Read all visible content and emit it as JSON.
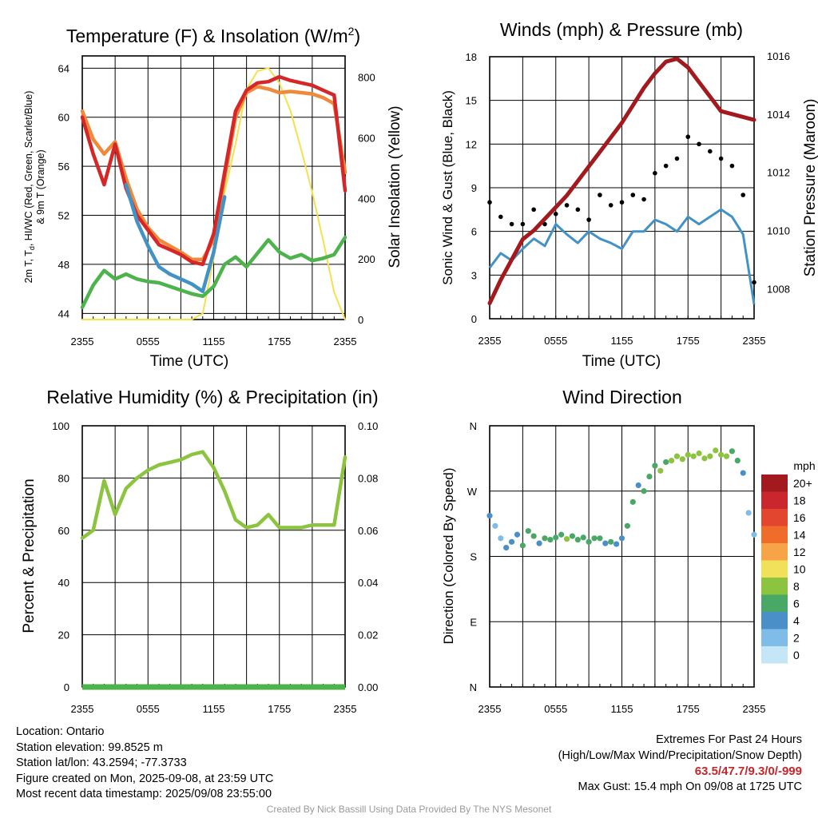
{
  "chart_data": [
    {
      "type": "line",
      "title": "Temperature (F) & Insolation (W/m²)",
      "xlabel": "Time (UTC)",
      "ylabel": "2m T, Td, HI/WC (Red, Green, Scarlet/Blue) & 9m T (Orange)",
      "ylabel_line1": "2m T, T",
      "ylabel_sub": "d",
      "ylabel_line1b": ", HI/WC (Red, Green, Scarlet/Blue)",
      "ylabel_line2": "& 9m T (Orange)",
      "y2label": "Solar Insolation (Yellow)",
      "title_main": "Temperature (F) & Insolation (W/m",
      "title_sup": "2",
      "title_end": ")",
      "x_ticks": [
        "2355",
        "0555",
        "1155",
        "1755",
        "2355"
      ],
      "ylim": [
        43.5,
        65
      ],
      "y_ticks": [
        44,
        48,
        52,
        56,
        60,
        64
      ],
      "y2lim": [
        0,
        870
      ],
      "y2_ticks": [
        0,
        200,
        400,
        600,
        800
      ],
      "x": [
        0,
        1,
        2,
        3,
        4,
        5,
        6,
        7,
        8,
        9,
        10,
        11,
        12,
        13,
        14,
        15,
        16,
        17,
        18,
        19,
        20,
        21,
        22,
        23,
        24
      ],
      "series": [
        {
          "color": "#f08a3a",
          "values": [
            60.5,
            58.2,
            57.0,
            58.0,
            55.0,
            52.5,
            51.0,
            50.0,
            49.5,
            49.0,
            48.4,
            48.4,
            50.0,
            55.0,
            60.0,
            62.0,
            62.5,
            62.3,
            62.0,
            62.1,
            62.0,
            61.9,
            61.6,
            61.1,
            55.5
          ]
        },
        {
          "color": "#d62728",
          "values": [
            60.0,
            57.0,
            54.5,
            57.8,
            54.2,
            52.0,
            50.8,
            49.6,
            49.2,
            48.8,
            48.2,
            48.0,
            50.5,
            55.5,
            60.5,
            62.2,
            62.8,
            62.9,
            63.3,
            63.0,
            62.8,
            62.6,
            62.2,
            61.8,
            54.0
          ]
        },
        {
          "color": "#4292c6",
          "values": [
            null,
            null,
            null,
            null,
            54.5,
            51.5,
            49.5,
            47.8,
            47.2,
            46.8,
            46.4,
            45.8,
            49.0,
            53.5,
            null,
            null,
            null,
            null,
            null,
            null,
            null,
            null,
            null,
            null,
            null
          ]
        },
        {
          "color": "#4db34d",
          "values": [
            44.5,
            46.3,
            47.5,
            46.8,
            47.2,
            46.8,
            46.6,
            46.5,
            46.2,
            45.9,
            45.6,
            45.4,
            46.2,
            48.0,
            48.6,
            47.8,
            48.9,
            50.0,
            49.0,
            48.5,
            48.8,
            48.3,
            48.5,
            48.8,
            50.2
          ]
        },
        {
          "color": "#f6e04d",
          "values": [
            0,
            0,
            0,
            0,
            0,
            0,
            0,
            0,
            0,
            0,
            0,
            20,
            200,
            420,
            580,
            760,
            820,
            830,
            780,
            690,
            560,
            420,
            260,
            90,
            0
          ]
        }
      ]
    },
    {
      "type": "scatter",
      "title": "Winds (mph) & Pressure (mb)",
      "xlabel": "Time (UTC)",
      "ylabel": "Sonic Wind & Gust (Blue, Black)",
      "y2label": "Station Pressure (Maroon)",
      "x_ticks": [
        "2355",
        "0555",
        "1155",
        "1755",
        "2355"
      ],
      "ylim": [
        0,
        18
      ],
      "y_ticks": [
        0,
        3,
        6,
        9,
        12,
        15,
        18
      ],
      "y2lim": [
        1006.97,
        1015.97
      ],
      "y2_ticks": [
        1008,
        1010,
        1012,
        1014,
        1016
      ],
      "x": [
        0,
        1,
        2,
        3,
        4,
        5,
        6,
        7,
        8,
        9,
        10,
        11,
        12,
        13,
        14,
        15,
        16,
        17,
        18,
        19,
        20,
        21,
        22,
        23,
        24
      ],
      "series": [
        {
          "color": "#4292c6",
          "values": [
            3.5,
            4.5,
            4.0,
            4.8,
            5.5,
            5.0,
            6.5,
            5.8,
            5.2,
            6.0,
            5.5,
            5.2,
            4.8,
            6.0,
            6.0,
            6.8,
            6.5,
            6.0,
            7.0,
            6.5,
            7.0,
            7.5,
            7.0,
            5.8,
            1.0
          ]
        },
        {
          "color": "#000000",
          "values": [
            8.0,
            7.0,
            6.5,
            6.5,
            7.5,
            6.5,
            7.2,
            7.8,
            7.5,
            6.8,
            8.5,
            7.8,
            8.0,
            8.5,
            8.2,
            10.0,
            10.5,
            11.0,
            12.5,
            12.0,
            11.5,
            11.0,
            10.5,
            8.5,
            2.5
          ]
        },
        {
          "color": "#a31a1e",
          "values": [
            1007.5,
            1008.3,
            1009.0,
            1009.7,
            1010.0,
            1010.4,
            1010.8,
            1011.2,
            1011.7,
            1012.2,
            1012.7,
            1013.2,
            1013.7,
            1014.3,
            1014.9,
            1015.4,
            1015.8,
            1015.9,
            1015.6,
            1015.1,
            1014.6,
            1014.1,
            1014.0,
            1013.9,
            1013.8
          ]
        }
      ]
    },
    {
      "type": "line",
      "title": "Relative Humidity (%) & Precipitation (in)",
      "ylabel": "Percent & Precipitation",
      "x_ticks": [
        "2355",
        "0555",
        "1155",
        "1755",
        "2355"
      ],
      "ylim": [
        0,
        100
      ],
      "y_ticks": [
        0,
        20,
        40,
        60,
        80,
        100
      ],
      "y2lim": [
        0,
        0.1
      ],
      "y2_ticks": [
        "0.00",
        "0.02",
        "0.04",
        "0.06",
        "0.08",
        "0.10"
      ],
      "x": [
        0,
        1,
        2,
        3,
        4,
        5,
        6,
        7,
        8,
        9,
        10,
        11,
        12,
        13,
        14,
        15,
        16,
        17,
        18,
        19,
        20,
        21,
        22,
        23,
        24
      ],
      "series": [
        {
          "color": "#8cc43f",
          "values": [
            57,
            60,
            79,
            66,
            76,
            80,
            83,
            85,
            86,
            87,
            89,
            90,
            84,
            75,
            64,
            61,
            62,
            66,
            61,
            61,
            61,
            62,
            62,
            62,
            88
          ]
        },
        {
          "color": "#4db34d",
          "values": [
            0,
            0,
            0,
            0,
            0,
            0,
            0,
            0,
            0,
            0,
            0,
            0,
            0,
            0,
            0,
            0,
            0,
            0,
            0,
            0,
            0,
            0,
            0,
            0,
            0
          ]
        }
      ]
    },
    {
      "type": "scatter",
      "title": "Wind Direction",
      "ylabel": "Direction (Colored By Speed)",
      "x_ticks": [
        "2355",
        "0555",
        "1155",
        "1755",
        "2355"
      ],
      "ylim": [
        0,
        360
      ],
      "y_ticks": [
        0,
        90,
        180,
        270,
        360
      ],
      "y_tick_labels": [
        "N",
        "E",
        "S",
        "W",
        "N"
      ],
      "x": [
        0,
        0.5,
        1,
        1.5,
        2,
        2.5,
        3,
        3.5,
        4,
        4.5,
        5,
        5.5,
        6,
        6.5,
        7,
        7.5,
        8,
        8.5,
        9,
        9.5,
        10,
        10.5,
        11,
        11.5,
        12,
        12.5,
        13,
        13.5,
        14,
        14.5,
        15,
        15.5,
        16,
        16.5,
        17,
        17.5,
        18,
        18.5,
        19,
        19.5,
        20,
        20.5,
        21,
        21.5,
        22,
        22.5,
        23,
        23.5,
        24
      ],
      "values": [
        236,
        222,
        205,
        192,
        200,
        210,
        195,
        215,
        208,
        198,
        205,
        203,
        206,
        210,
        204,
        208,
        203,
        206,
        200,
        205,
        205,
        198,
        200,
        197,
        205,
        222,
        255,
        278,
        270,
        290,
        305,
        298,
        310,
        312,
        318,
        314,
        320,
        318,
        322,
        315,
        318,
        326,
        320,
        318,
        325,
        312,
        295,
        240,
        210
      ],
      "speeds": [
        3,
        2,
        2,
        3,
        4,
        3,
        5,
        6,
        5,
        4,
        6,
        5,
        5,
        6,
        7,
        6,
        5,
        6,
        5,
        6,
        5,
        4,
        5,
        3,
        4,
        5,
        6,
        4,
        5,
        6,
        6,
        7,
        6,
        7,
        8,
        7,
        7,
        8,
        7,
        8,
        7,
        8,
        8,
        7,
        6,
        5,
        3,
        2,
        2
      ],
      "colorbar": {
        "title": "mph",
        "labels": [
          "20+",
          "18",
          "16",
          "14",
          "12",
          "10",
          "8",
          "6",
          "4",
          "2",
          "0"
        ],
        "colors": [
          "#a31a1e",
          "#c9272d",
          "#e3462e",
          "#f06c2b",
          "#f7a448",
          "#f0e05a",
          "#8cc43f",
          "#4aa867",
          "#4a8fc7",
          "#80bce8",
          "#c4e6f7"
        ]
      }
    }
  ],
  "info": {
    "location": "Location: Ontario",
    "elevation": "Station elevation: 99.8525 m",
    "latlon": "Station lat/lon: 43.2594; -77.3733",
    "created": "Figure created on Mon, 2025-09-08, at 23:59 UTC",
    "recent": "Most recent data timestamp: 2025/09/08 23:55:00"
  },
  "extremes": {
    "title": "Extremes For Past 24 Hours",
    "subtitle": "(High/Low/Max Wind/Precipitation/Snow Depth)",
    "values": "63.5/47.7/9.3/0/-999",
    "gust": "Max Gust: 15.4 mph On 09/08 at 1725 UTC"
  },
  "credit": "Created By Nick Bassill Using Data Provided By The NYS Mesonet"
}
